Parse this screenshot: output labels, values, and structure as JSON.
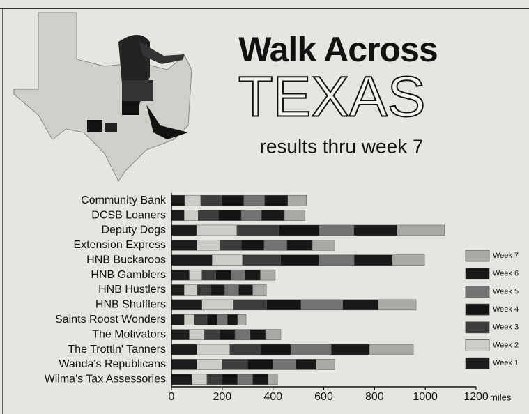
{
  "chart_data": {
    "type": "stacked_bar_horizontal",
    "title": "Walk Across",
    "title_big": "TEXAS",
    "subtitle": "results thru week 7",
    "xlabel": "miles",
    "categories": [
      "Community Bank",
      "DCSB Loaners",
      "Deputy Dogs",
      "Extension Express",
      "HNB Buckaroos",
      "HNB Gamblers",
      "HNB Hustlers",
      "HNB Shufflers",
      "Saints Roost Wonders",
      "The Motivators",
      "The Trottin' Tanners",
      "Wanda's Republicans",
      "Wilma's Tax Assessories"
    ],
    "series": [
      {
        "name": "Week 1",
        "color": "#1c1c1c",
        "values": [
          52,
          50,
          99,
          100,
          160,
          70,
          50,
          120,
          50,
          70,
          100,
          100,
          80
        ]
      },
      {
        "name": "Week 2",
        "color": "#cdcdc8",
        "values": [
          63,
          55,
          159,
          90,
          120,
          50,
          50,
          125,
          40,
          60,
          130,
          100,
          60
        ]
      },
      {
        "name": "Week 3",
        "color": "#3c3c3c",
        "values": [
          82,
          80,
          165,
          85,
          150,
          55,
          55,
          130,
          50,
          60,
          120,
          100,
          60
        ]
      },
      {
        "name": "Week 4",
        "color": "#141414",
        "values": [
          88,
          90,
          159,
          90,
          150,
          60,
          55,
          135,
          40,
          60,
          120,
          100,
          60
        ]
      },
      {
        "name": "Week 5",
        "color": "#737373",
        "values": [
          82,
          80,
          137,
          90,
          140,
          55,
          55,
          165,
          40,
          60,
          160,
          90,
          60
        ]
      },
      {
        "name": "Week 6",
        "color": "#181818",
        "values": [
          91,
          90,
          170,
          100,
          150,
          60,
          55,
          140,
          40,
          60,
          150,
          80,
          60
        ]
      },
      {
        "name": "Week 7",
        "color": "#a9a9a5",
        "values": [
          74,
          80,
          187,
          88,
          127,
          59,
          54,
          149,
          34,
          61,
          173,
          73,
          38
        ]
      }
    ],
    "xlim": [
      0,
      1200
    ],
    "xticks": [
      0,
      200,
      400,
      600,
      800,
      1000,
      1200
    ],
    "legend": "right"
  }
}
